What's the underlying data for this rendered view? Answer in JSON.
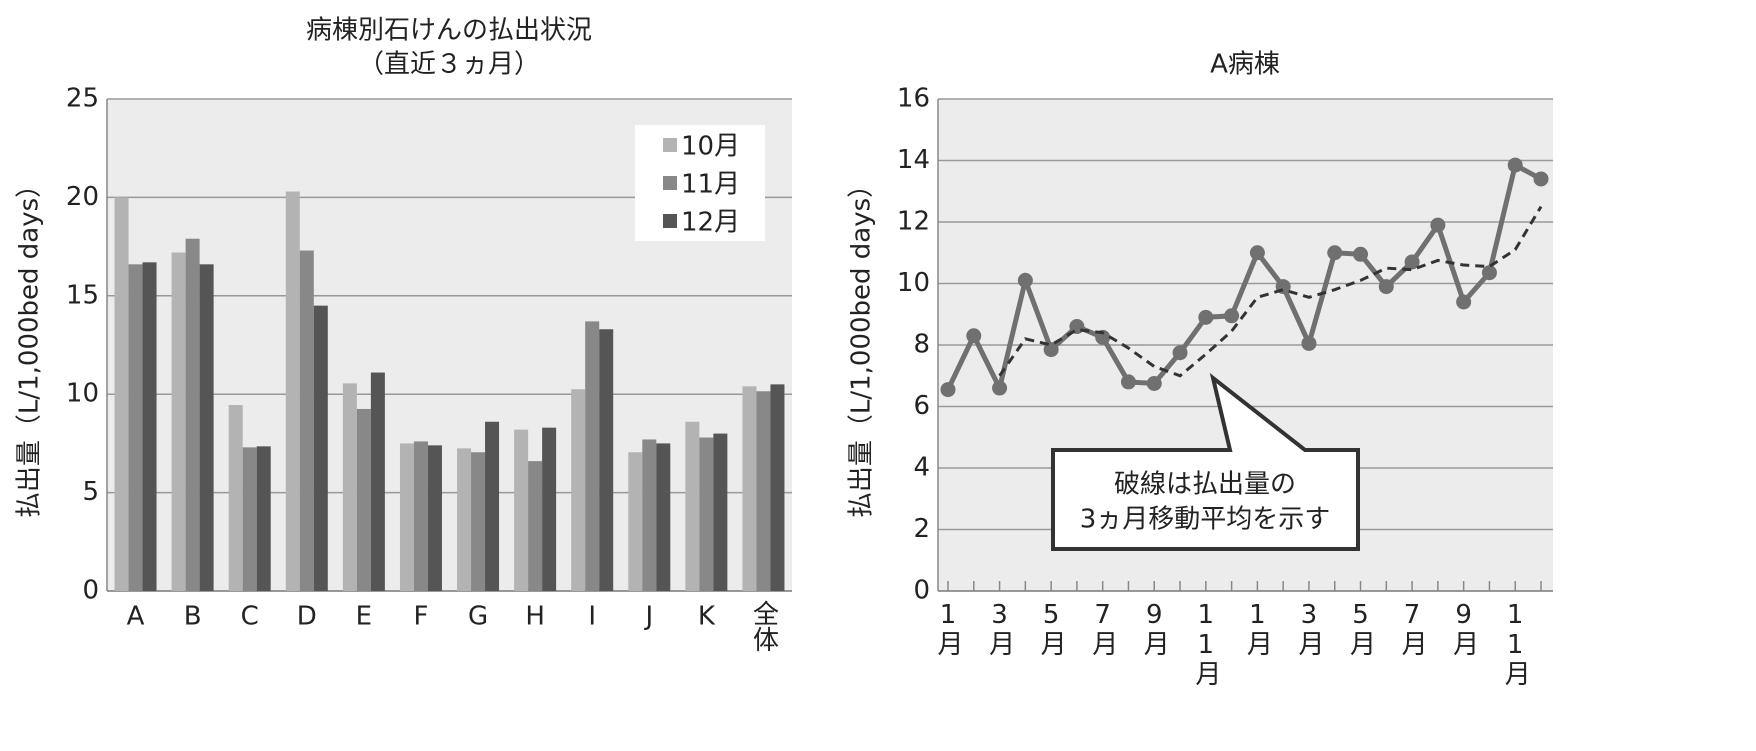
{
  "chart_data": [
    {
      "type": "bar",
      "title": [
        "病棟別石けんの払出状況",
        "（直近３ヵ月）"
      ],
      "y_label": "払出量（L/1,000bed days）",
      "categories": [
        "A",
        "B",
        "C",
        "D",
        "E",
        "F",
        "G",
        "H",
        "I",
        "J",
        "K",
        "全体"
      ],
      "series": [
        {
          "name": "10月",
          "color": "#b3b3b3",
          "values": [
            20.0,
            17.2,
            9.45,
            20.3,
            10.55,
            7.5,
            7.25,
            8.2,
            10.25,
            7.05,
            8.6,
            10.4
          ]
        },
        {
          "name": "11月",
          "color": "#888888",
          "values": [
            16.6,
            17.9,
            7.3,
            17.3,
            9.25,
            7.6,
            7.05,
            6.6,
            13.7,
            7.7,
            7.8,
            10.15
          ]
        },
        {
          "name": "12月",
          "color": "#555555",
          "values": [
            16.7,
            16.6,
            7.35,
            14.5,
            11.1,
            7.4,
            8.6,
            8.3,
            13.3,
            7.5,
            8.0,
            10.5
          ]
        }
      ],
      "ylim": [
        0,
        25
      ],
      "yticks": [
        0,
        5,
        10,
        15,
        20,
        25
      ],
      "grid": true,
      "legend": "upper-right"
    },
    {
      "type": "line",
      "title": "A病棟",
      "y_label": "払出量（L/1,000bed days）",
      "categories": [
        "1月",
        null,
        "3月",
        null,
        "5月",
        null,
        "7月",
        null,
        "9月",
        null,
        "11月",
        null,
        "1月",
        null,
        "3月",
        null,
        "5月",
        null,
        "7月",
        null,
        "9月",
        null,
        "11月",
        null
      ],
      "series": [
        {
          "color": "#707070",
          "dash": false,
          "markers": true,
          "values": [
            6.55,
            8.3,
            6.6,
            10.1,
            7.85,
            8.6,
            8.25,
            6.8,
            6.75,
            7.75,
            8.9,
            8.95,
            11.0,
            9.9,
            8.05,
            11.0,
            10.95,
            9.9,
            10.7,
            11.9,
            9.4,
            10.35,
            13.85,
            13.4
          ]
        },
        {
          "color": "#333333",
          "dash": true,
          "markers": false,
          "values": [
            null,
            null,
            7.0,
            8.2,
            8.0,
            8.5,
            8.4,
            7.9,
            7.3,
            7.0,
            7.7,
            8.45,
            9.55,
            9.8,
            9.55,
            9.8,
            10.1,
            10.5,
            10.45,
            10.75,
            10.6,
            10.55,
            11.1,
            12.5
          ]
        }
      ],
      "annotation": [
        "破線は払出量の",
        "3ヵ月移動平均を示す"
      ],
      "ylim": [
        0,
        16
      ],
      "yticks": [
        0,
        2,
        4,
        6,
        8,
        10,
        12,
        14,
        16
      ],
      "grid": true
    }
  ]
}
